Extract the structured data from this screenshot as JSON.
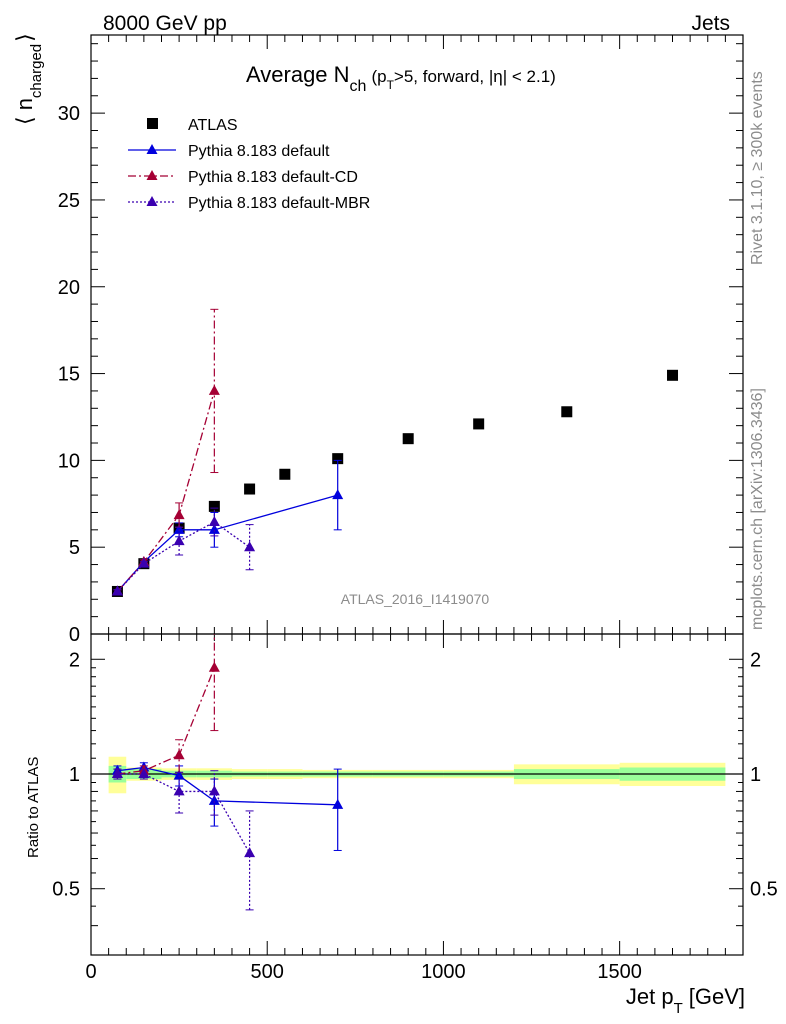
{
  "header": {
    "energy": "8000 GeV pp",
    "category": "Jets"
  },
  "side": {
    "rivet": "Rivet 3.1.10, ≥ 300k events",
    "mcplots": "mcplots.cern.ch [arXiv:1306.3436]"
  },
  "chart_data": {
    "type": "scatter",
    "title": {
      "main": "Average N",
      "main_sub": "ch",
      "cond_open": "(p",
      "cond_sub": "T",
      "cond_rest": ">5, forward, |η| < 2.1)"
    },
    "watermark": "ATLAS_2016_I1419070",
    "xlabel": {
      "main": "Jet p",
      "sub": "T",
      "unit": "[GeV]"
    },
    "ylabel_main": {
      "open": "⟨ n",
      "sub": "charged",
      "close": "⟩"
    },
    "ylabel_ratio": "Ratio to ATLAS",
    "xlim": [
      0,
      1850
    ],
    "ylim_main": [
      0,
      34.5
    ],
    "ylim_ratio": [
      0.335,
      2.33
    ],
    "x_ticks": [
      0,
      500,
      1000,
      1500
    ],
    "x_tick_labels": [
      "0",
      "500",
      "1000",
      "1500"
    ],
    "y_ticks_main": [
      0,
      5,
      10,
      15,
      20,
      25,
      30
    ],
    "y_tick_labels_main": [
      "0",
      "5",
      "10",
      "15",
      "20",
      "25",
      "30"
    ],
    "y_ticks_ratio": [
      0.5,
      1,
      2
    ],
    "y_tick_labels_ratio": [
      "0.5",
      "1",
      "2"
    ],
    "legend_position": "top-left",
    "series": [
      {
        "name": "ATLAS",
        "color": "#000000",
        "marker": "square",
        "x": [
          75,
          150,
          250,
          350,
          450,
          550,
          700,
          900,
          1100,
          1350,
          1650
        ],
        "y": [
          2.45,
          4.05,
          6.1,
          7.35,
          8.35,
          9.2,
          10.1,
          11.25,
          12.1,
          12.8,
          14.9
        ],
        "bins": [
          [
            50,
            100
          ],
          [
            100,
            200
          ],
          [
            200,
            300
          ],
          [
            300,
            400
          ],
          [
            400,
            500
          ],
          [
            500,
            600
          ],
          [
            600,
            800
          ],
          [
            800,
            1000
          ],
          [
            1000,
            1200
          ],
          [
            1200,
            1500
          ],
          [
            1500,
            1800
          ]
        ],
        "ratio_band_inner": [
          0.05,
          0.03,
          0.02,
          0.02,
          0.015,
          0.015,
          0.015,
          0.015,
          0.015,
          0.03,
          0.04
        ],
        "ratio_band_outer": [
          0.11,
          0.04,
          0.035,
          0.035,
          0.03,
          0.03,
          0.025,
          0.025,
          0.025,
          0.06,
          0.07
        ]
      },
      {
        "name": "Pythia 8.183 default",
        "color": "#0000dd",
        "marker": "triangle",
        "line": "solid",
        "x": [
          75,
          150,
          250,
          350,
          700
        ],
        "y": [
          2.45,
          4.15,
          6.0,
          6.0,
          8.0
        ],
        "yerr": [
          0.1,
          0.12,
          0.4,
          1.0,
          2.0
        ],
        "ratio": [
          1.02,
          1.04,
          0.99,
          0.85,
          0.83
        ],
        "ratio_err": [
          0.03,
          0.03,
          0.06,
          0.12,
          0.2
        ]
      },
      {
        "name": "Pythia 8.183 default-CD",
        "color": "#a50034",
        "marker": "triangle",
        "line": "dashdot",
        "x": [
          75,
          150,
          250,
          350
        ],
        "y": [
          2.45,
          4.15,
          6.85,
          14.0
        ],
        "yerr": [
          0.1,
          0.12,
          0.7,
          4.7
        ],
        "ratio": [
          1.0,
          1.02,
          1.12,
          1.9
        ],
        "ratio_err": [
          0.03,
          0.03,
          0.11,
          0.6
        ]
      },
      {
        "name": "Pythia 8.183 default-MBR",
        "color": "#3a00b0",
        "marker": "triangle",
        "line": "dotted",
        "x": [
          75,
          150,
          250,
          350,
          450
        ],
        "y": [
          2.45,
          4.05,
          5.35,
          6.45,
          5.0
        ],
        "yerr": [
          0.1,
          0.12,
          0.8,
          0.8,
          1.3
        ],
        "ratio": [
          1.0,
          1.0,
          0.9,
          0.9,
          0.62
        ],
        "ratio_err": [
          0.03,
          0.03,
          0.11,
          0.12,
          0.18
        ]
      }
    ]
  }
}
